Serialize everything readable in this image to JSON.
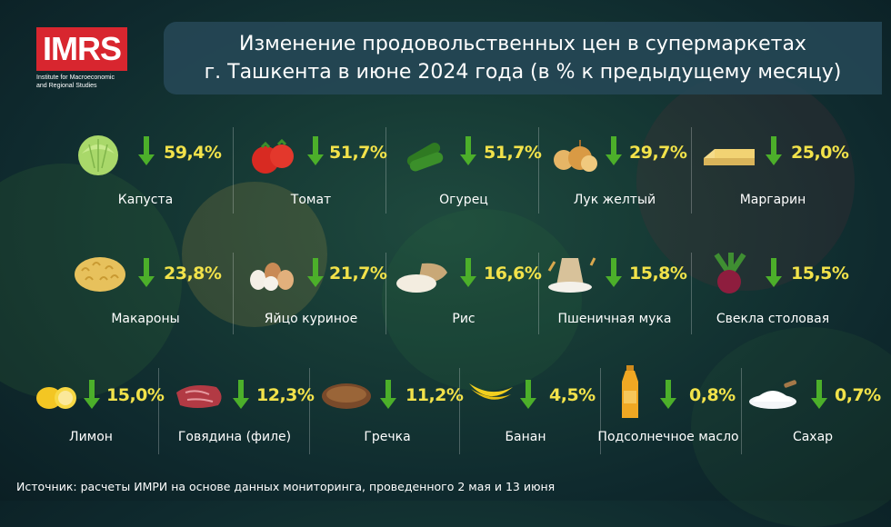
{
  "logo": {
    "mark": "IMRS",
    "subtitle": "Institute for Macroeconomic\nand Regional Studies"
  },
  "title": {
    "line1": "Изменение продовольственных цен в супермаркетах",
    "line2": "г. Ташкента в июне 2024 года (в % к предыдущему месяцу)"
  },
  "colors": {
    "accent": "#f2e24a",
    "arrow": "#4caf2a",
    "logo": "#d8262f",
    "title_bg": "#264856"
  },
  "items": [
    {
      "name": "Капуста",
      "change": "59,4%",
      "direction": "down",
      "icon": "cabbage-icon"
    },
    {
      "name": "Томат",
      "change": "51,7%",
      "direction": "down",
      "icon": "tomato-icon"
    },
    {
      "name": "Огурец",
      "change": "51,7%",
      "direction": "down",
      "icon": "cucumber-icon"
    },
    {
      "name": "Лук желтый",
      "change": "29,7%",
      "direction": "down",
      "icon": "onion-icon"
    },
    {
      "name": "Маргарин",
      "change": "25,0%",
      "direction": "down",
      "icon": "margarine-icon"
    },
    {
      "name": "Макароны",
      "change": "23,8%",
      "direction": "down",
      "icon": "pasta-icon"
    },
    {
      "name": "Яйцо куриное",
      "change": "21,7%",
      "direction": "down",
      "icon": "eggs-icon"
    },
    {
      "name": "Рис",
      "change": "16,6%",
      "direction": "down",
      "icon": "rice-icon"
    },
    {
      "name": "Пшеничная мука",
      "change": "15,8%",
      "direction": "down",
      "icon": "flour-icon"
    },
    {
      "name": "Свекла столовая",
      "change": "15,5%",
      "direction": "down",
      "icon": "beet-icon"
    },
    {
      "name": "Лимон",
      "change": "15,0%",
      "direction": "down",
      "icon": "lemon-icon"
    },
    {
      "name": "Говядина (филе)",
      "change": "12,3%",
      "direction": "down",
      "icon": "beef-icon"
    },
    {
      "name": "Гречка",
      "change": "11,2%",
      "direction": "down",
      "icon": "buckwheat-icon"
    },
    {
      "name": "Банан",
      "change": "4,5%",
      "direction": "down",
      "icon": "banana-icon"
    },
    {
      "name": "Подсолнечное масло",
      "change": "0,8%",
      "direction": "down",
      "icon": "oil-bottle-icon"
    },
    {
      "name": "Сахар",
      "change": "0,7%",
      "direction": "down",
      "icon": "sugar-icon"
    }
  ],
  "source": "Источник: расчеты ИМРИ на основе данных мониторинга, проведенного 2 мая и 13 июня"
}
